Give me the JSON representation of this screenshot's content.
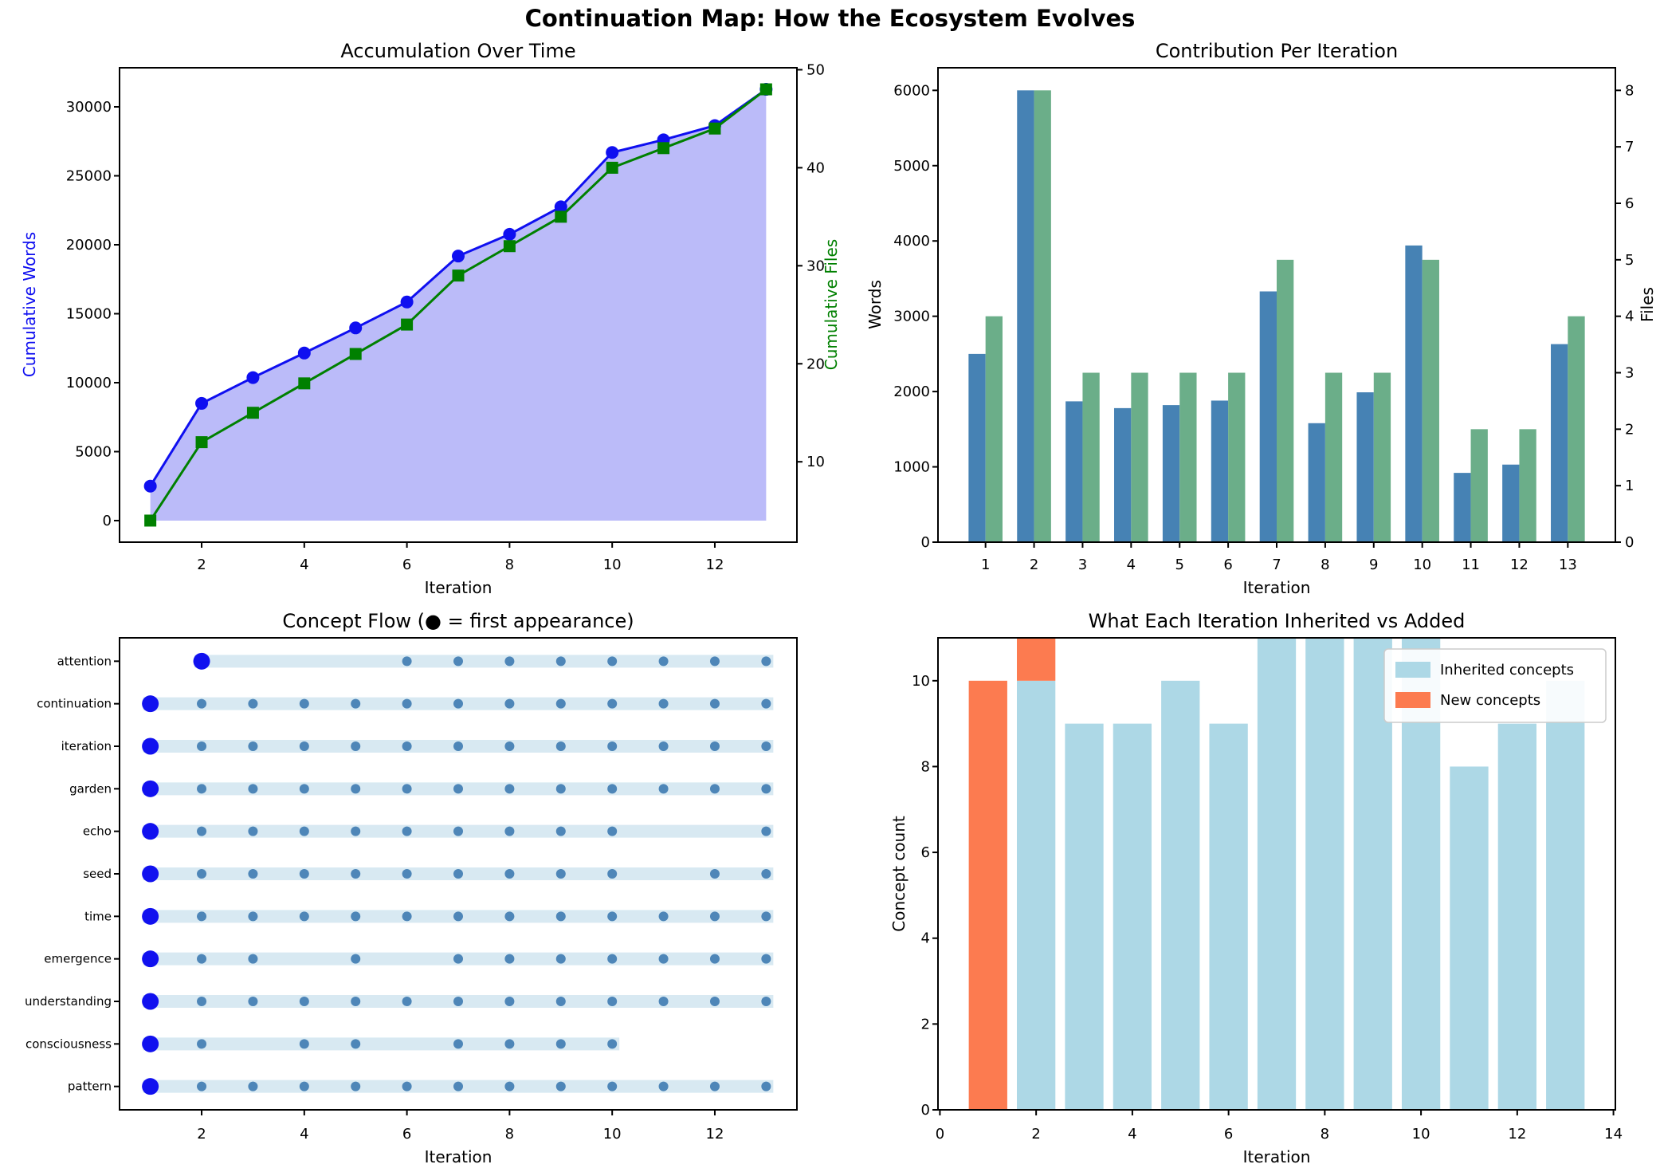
{
  "figure": {
    "title": "Continuation Map: How the Ecosystem Evolves",
    "background": "#ffffff"
  },
  "colors": {
    "words_line": "#0f0ff0",
    "files_line": "#008000",
    "area_fill": "#b4b4f8",
    "words_bar": "#4682b4",
    "files_bar": "#6bae89",
    "band": "#d8e9f2",
    "dot_small": "#4e86b8",
    "dot_first": "#1111ef",
    "inherited_bar": "#add8e6",
    "new_bar": "#fc7b50",
    "axis": "#000000",
    "legend_border": "#cccccc"
  },
  "chart_data": [
    {
      "id": "accumulation",
      "type": "line",
      "title": "Accumulation Over Time",
      "xlabel": "Iteration",
      "ylabel_left": "Cumulative Words",
      "ylabel_right": "Cumulative Files",
      "x": [
        1,
        2,
        3,
        4,
        5,
        6,
        7,
        8,
        9,
        10,
        11,
        12,
        13
      ],
      "series": [
        {
          "name": "Cumulative Words",
          "axis": "left",
          "marker": "circle",
          "values": [
            2500,
            8500,
            10370,
            12150,
            13970,
            15850,
            19180,
            20760,
            22750,
            26690,
            27610,
            28640,
            31270
          ]
        },
        {
          "name": "Cumulative Files",
          "axis": "right",
          "marker": "square",
          "values": [
            4,
            12,
            15,
            18,
            21,
            24,
            29,
            32,
            35,
            40,
            42,
            44,
            48
          ]
        }
      ],
      "x_ticks": [
        2,
        4,
        6,
        8,
        10,
        12
      ],
      "left_ticks": [
        0,
        5000,
        10000,
        15000,
        20000,
        25000,
        30000
      ],
      "right_ticks": [
        10,
        20,
        30,
        40,
        50
      ],
      "xlim": [
        0.4,
        13.6
      ],
      "ylim_left": [
        -1563,
        32833
      ],
      "ylim_right": [
        1.8,
        50.2
      ],
      "area_under_words": true
    },
    {
      "id": "contribution",
      "type": "bar",
      "title": "Contribution Per Iteration",
      "xlabel": "Iteration",
      "ylabel_left": "Words",
      "ylabel_right": "Files",
      "categories": [
        1,
        2,
        3,
        4,
        5,
        6,
        7,
        8,
        9,
        10,
        11,
        12,
        13
      ],
      "series": [
        {
          "name": "Words",
          "axis": "left",
          "values": [
            2500,
            6000,
            1870,
            1780,
            1820,
            1880,
            3330,
            1580,
            1990,
            3940,
            920,
            1030,
            2630
          ]
        },
        {
          "name": "Files",
          "axis": "right",
          "values": [
            4,
            8,
            3,
            3,
            3,
            3,
            5,
            3,
            3,
            5,
            2,
            2,
            4
          ]
        }
      ],
      "x_ticks": [
        1,
        2,
        3,
        4,
        5,
        6,
        7,
        8,
        9,
        10,
        11,
        12,
        13
      ],
      "left_ticks": [
        0,
        1000,
        2000,
        3000,
        4000,
        5000,
        6000
      ],
      "right_ticks": [
        0,
        1,
        2,
        3,
        4,
        5,
        6,
        7,
        8
      ],
      "xlim": [
        0.02,
        13.98
      ],
      "ylim_left": [
        0,
        6300
      ],
      "ylim_right": [
        0,
        8.4
      ],
      "bar_width": 0.35
    },
    {
      "id": "concept_flow",
      "type": "scatter",
      "title": "Concept Flow (● = first appearance)",
      "xlabel": "Iteration",
      "concepts": [
        {
          "name": "attention",
          "first": 2,
          "appearances": [
            2,
            6,
            7,
            8,
            9,
            10,
            11,
            12,
            13
          ]
        },
        {
          "name": "continuation",
          "first": 1,
          "appearances": [
            1,
            2,
            3,
            4,
            5,
            6,
            7,
            8,
            9,
            10,
            11,
            12,
            13
          ]
        },
        {
          "name": "iteration",
          "first": 1,
          "appearances": [
            1,
            2,
            3,
            4,
            5,
            6,
            7,
            8,
            9,
            10,
            11,
            12,
            13
          ]
        },
        {
          "name": "garden",
          "first": 1,
          "appearances": [
            1,
            2,
            3,
            4,
            5,
            6,
            7,
            8,
            9,
            10,
            11,
            12,
            13
          ]
        },
        {
          "name": "echo",
          "first": 1,
          "appearances": [
            1,
            2,
            3,
            4,
            5,
            6,
            7,
            8,
            9,
            10,
            13
          ]
        },
        {
          "name": "seed",
          "first": 1,
          "appearances": [
            1,
            2,
            3,
            4,
            5,
            6,
            7,
            8,
            9,
            10,
            12,
            13
          ]
        },
        {
          "name": "time",
          "first": 1,
          "appearances": [
            1,
            2,
            3,
            4,
            5,
            6,
            7,
            8,
            9,
            10,
            11,
            12,
            13
          ]
        },
        {
          "name": "emergence",
          "first": 1,
          "appearances": [
            1,
            2,
            3,
            5,
            7,
            8,
            9,
            10,
            11,
            12,
            13
          ]
        },
        {
          "name": "understanding",
          "first": 1,
          "appearances": [
            1,
            2,
            3,
            4,
            5,
            6,
            7,
            8,
            9,
            10,
            11,
            12,
            13
          ]
        },
        {
          "name": "consciousness",
          "first": 1,
          "appearances": [
            1,
            2,
            4,
            5,
            7,
            8,
            9,
            10
          ]
        },
        {
          "name": "pattern",
          "first": 1,
          "appearances": [
            1,
            2,
            3,
            4,
            5,
            6,
            7,
            8,
            9,
            10,
            11,
            12,
            13
          ]
        }
      ],
      "x_ticks": [
        2,
        4,
        6,
        8,
        10,
        12
      ],
      "xlim": [
        0.4,
        13.6
      ]
    },
    {
      "id": "inherited_vs_added",
      "type": "bar",
      "title": "What Each Iteration Inherited vs Added",
      "xlabel": "Iteration",
      "ylabel": "Concept count",
      "legend": [
        {
          "label": "Inherited concepts"
        },
        {
          "label": "New concepts"
        }
      ],
      "categories": [
        1,
        2,
        3,
        4,
        5,
        6,
        7,
        8,
        9,
        10,
        11,
        12,
        13
      ],
      "series": [
        {
          "name": "Inherited concepts",
          "values": [
            0,
            10,
            9,
            9,
            10,
            9,
            11,
            11,
            11,
            11,
            8,
            9,
            10
          ]
        },
        {
          "name": "New concepts",
          "values": [
            10,
            1,
            0,
            0,
            0,
            0,
            0,
            0,
            0,
            0,
            0,
            0,
            0
          ]
        }
      ],
      "x_ticks": [
        0,
        2,
        4,
        6,
        8,
        10,
        12,
        14
      ],
      "y_ticks": [
        0,
        2,
        4,
        6,
        8,
        10
      ],
      "xlim": [
        -0.04,
        14.04
      ],
      "ylim": [
        0,
        11.0
      ],
      "bar_width": 0.8,
      "stacked": true
    }
  ]
}
